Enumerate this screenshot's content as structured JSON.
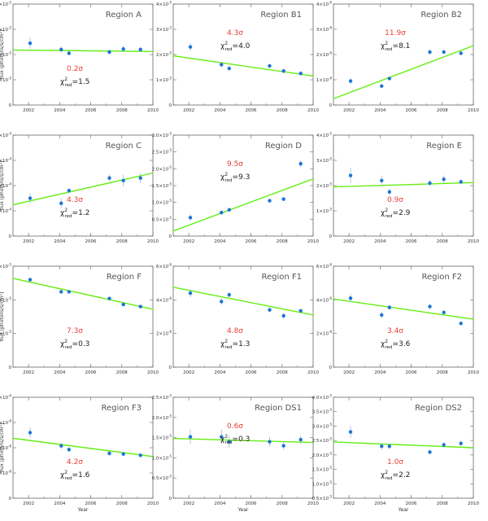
{
  "colors": {
    "fit_line": "#66ee11",
    "points": "#1d74d8",
    "sigma": "#e8403a",
    "axes": "#666666"
  },
  "axis_labels": {
    "x": "Year",
    "y": "flux [photons/s/cm²]"
  },
  "chart_data": [
    {
      "type": "scatter",
      "title": "Region A",
      "sigma": "0.2σ",
      "chi2_red": "1.5",
      "exp": -5,
      "ylim": [
        0,
        4
      ],
      "yticks": [
        0,
        1,
        2,
        3,
        4
      ],
      "yformat": "int",
      "xlim": [
        2001,
        2010
      ],
      "xticks": [
        2002,
        2004,
        2006,
        2008,
        2010
      ],
      "points": [
        [
          2002.1,
          2.45,
          0.22
        ],
        [
          2004.1,
          2.2,
          0.12
        ],
        [
          2004.6,
          2.05,
          0.08
        ],
        [
          2007.2,
          2.1,
          0.1
        ],
        [
          2008.1,
          2.22,
          0.12
        ],
        [
          2009.2,
          2.2,
          0.1
        ]
      ],
      "fit": [
        [
          2001,
          2.18
        ],
        [
          2010,
          2.12
        ]
      ],
      "label_pos": "lower"
    },
    {
      "type": "scatter",
      "title": "Region B1",
      "sigma": "4.3σ",
      "chi2_red": "4.0",
      "exp": -5,
      "ylim": [
        0,
        4
      ],
      "yticks": [
        0,
        1,
        2,
        3,
        4
      ],
      "yformat": "int",
      "xlim": [
        2001,
        2010
      ],
      "xticks": [
        2002,
        2004,
        2006,
        2008,
        2010
      ],
      "points": [
        [
          2002.1,
          2.3,
          0.15
        ],
        [
          2004.1,
          1.6,
          0.1
        ],
        [
          2004.6,
          1.45,
          0.08
        ],
        [
          2007.2,
          1.55,
          0.08
        ],
        [
          2008.1,
          1.35,
          0.1
        ],
        [
          2009.2,
          1.25,
          0.08
        ]
      ],
      "fit": [
        [
          2001,
          1.95
        ],
        [
          2010,
          1.15
        ]
      ],
      "label_pos": "upper"
    },
    {
      "type": "scatter",
      "title": "Region B2",
      "sigma": "11.9σ",
      "chi2_red": "8.1",
      "exp": -6,
      "ylim": [
        0,
        4
      ],
      "yticks": [
        0,
        1,
        2,
        3,
        4
      ],
      "yformat": "int",
      "xlim": [
        2001,
        2010
      ],
      "xticks": [
        2002,
        2004,
        2006,
        2008,
        2010
      ],
      "points": [
        [
          2002.1,
          0.95,
          0.12
        ],
        [
          2004.1,
          0.75,
          0.06
        ],
        [
          2004.6,
          1.05,
          0.06
        ],
        [
          2007.2,
          2.1,
          0.1
        ],
        [
          2008.1,
          2.1,
          0.08
        ],
        [
          2009.2,
          2.05,
          0.08
        ]
      ],
      "fit": [
        [
          2001,
          0.25
        ],
        [
          2010,
          2.35
        ]
      ],
      "label_pos": "upper"
    },
    {
      "type": "scatter",
      "title": "Region C",
      "sigma": "4.3σ",
      "chi2_red": "1.2",
      "exp": -4,
      "ylim": [
        0,
        2
      ],
      "yticks": [
        0,
        0.5,
        1,
        1.5,
        2
      ],
      "yformat": "1dec",
      "xlim": [
        2001,
        2010
      ],
      "xticks": [
        2002,
        2004,
        2006,
        2008,
        2010
      ],
      "points": [
        [
          2002.1,
          0.75,
          0.1
        ],
        [
          2004.1,
          0.65,
          0.1
        ],
        [
          2004.6,
          0.9,
          0.05
        ],
        [
          2007.2,
          1.15,
          0.07
        ],
        [
          2008.1,
          1.1,
          0.12
        ],
        [
          2009.2,
          1.15,
          0.1
        ]
      ],
      "fit": [
        [
          2001,
          0.62
        ],
        [
          2010,
          1.25
        ]
      ],
      "label_pos": "lower"
    },
    {
      "type": "scatter",
      "title": "Region D",
      "sigma": "9.5σ",
      "chi2_red": "9.3",
      "exp": -5,
      "ylim": [
        0,
        3
      ],
      "yticks": [
        0,
        0.5,
        1,
        1.5,
        2,
        2.5,
        3
      ],
      "yformat": "1dec",
      "xlim": [
        2001,
        2010
      ],
      "xticks": [
        2002,
        2004,
        2006,
        2008,
        2010
      ],
      "points": [
        [
          2002.1,
          0.55,
          0.1
        ],
        [
          2004.1,
          0.7,
          0.07
        ],
        [
          2004.6,
          0.78,
          0.05
        ],
        [
          2007.2,
          1.05,
          0.05
        ],
        [
          2008.1,
          1.1,
          0.06
        ],
        [
          2009.2,
          2.15,
          0.1
        ]
      ],
      "fit": [
        [
          2001,
          0.15
        ],
        [
          2010,
          1.7
        ]
      ],
      "label_pos": "upper"
    },
    {
      "type": "scatter",
      "title": "Region E",
      "sigma": "0.9σ",
      "chi2_red": "2.9",
      "exp": -5,
      "ylim": [
        0,
        4
      ],
      "yticks": [
        0,
        1,
        2,
        3,
        4
      ],
      "yformat": "int",
      "xlim": [
        2001,
        2010
      ],
      "xticks": [
        2002,
        2004,
        2006,
        2008,
        2010
      ],
      "points": [
        [
          2002.1,
          2.4,
          0.3
        ],
        [
          2004.1,
          2.2,
          0.2
        ],
        [
          2004.6,
          1.75,
          0.12
        ],
        [
          2007.2,
          2.1,
          0.12
        ],
        [
          2008.1,
          2.25,
          0.15
        ],
        [
          2009.2,
          2.15,
          0.1
        ]
      ],
      "fit": [
        [
          2001,
          1.95
        ],
        [
          2010,
          2.12
        ]
      ],
      "label_pos": "lower"
    },
    {
      "type": "scatter",
      "title": "Region F",
      "sigma": "7.3σ",
      "chi2_red": "0.3",
      "exp": -5,
      "ylim": [
        0,
        1.5
      ],
      "yticks": [
        0,
        0.5,
        1,
        1.5
      ],
      "yformat": "int",
      "xlim": [
        2001,
        2010
      ],
      "xticks": [
        2002,
        2004,
        2006,
        2008,
        2010
      ],
      "points": [
        [
          2002.1,
          1.3,
          0.03
        ],
        [
          2004.1,
          1.12,
          0.02
        ],
        [
          2004.6,
          1.12,
          0.02
        ],
        [
          2007.2,
          1.02,
          0.02
        ],
        [
          2008.1,
          0.93,
          0.02
        ],
        [
          2009.2,
          0.9,
          0.02
        ]
      ],
      "fit": [
        [
          2001,
          1.32
        ],
        [
          2010,
          0.86
        ]
      ],
      "label_pos": "lower"
    },
    {
      "type": "scatter",
      "title": "Region F1",
      "sigma": "4.8σ",
      "chi2_red": "1.3",
      "exp": -6,
      "ylim": [
        0,
        6
      ],
      "yticks": [
        0,
        2,
        4,
        6
      ],
      "yformat": "int",
      "xlim": [
        2001,
        2010
      ],
      "xticks": [
        2002,
        2004,
        2006,
        2008,
        2010
      ],
      "points": [
        [
          2002.1,
          4.4,
          0.25
        ],
        [
          2004.1,
          3.9,
          0.2
        ],
        [
          2004.6,
          4.3,
          0.15
        ],
        [
          2007.2,
          3.4,
          0.15
        ],
        [
          2008.1,
          3.05,
          0.15
        ],
        [
          2009.2,
          3.35,
          0.12
        ]
      ],
      "fit": [
        [
          2001,
          4.75
        ],
        [
          2010,
          3.1
        ]
      ],
      "label_pos": "lower"
    },
    {
      "type": "scatter",
      "title": "Region F2",
      "sigma": "3.4σ",
      "chi2_red": "3.6",
      "exp": -6,
      "ylim": [
        0,
        6
      ],
      "yticks": [
        0,
        2,
        4,
        6
      ],
      "yformat": "int",
      "xlim": [
        2001,
        2010
      ],
      "xticks": [
        2002,
        2004,
        2006,
        2008,
        2010
      ],
      "points": [
        [
          2002.1,
          4.1,
          0.25
        ],
        [
          2004.1,
          3.1,
          0.2
        ],
        [
          2004.6,
          3.55,
          0.15
        ],
        [
          2007.2,
          3.6,
          0.15
        ],
        [
          2008.1,
          3.25,
          0.15
        ],
        [
          2009.2,
          2.6,
          0.12
        ]
      ],
      "fit": [
        [
          2001,
          4.05
        ],
        [
          2010,
          2.85
        ]
      ],
      "label_pos": "lower"
    },
    {
      "type": "scatter",
      "title": "Region F3",
      "sigma": "4.2σ",
      "chi2_red": "1.6",
      "exp": -6,
      "ylim": [
        0,
        8
      ],
      "yticks": [
        0,
        2,
        4,
        6,
        8
      ],
      "yformat": "int",
      "xlim": [
        2001,
        2010
      ],
      "xticks": [
        2002,
        2004,
        2006,
        2008,
        2010
      ],
      "points": [
        [
          2002.1,
          5.2,
          0.4
        ],
        [
          2004.1,
          4.15,
          0.25
        ],
        [
          2004.6,
          3.85,
          0.2
        ],
        [
          2007.2,
          3.55,
          0.18
        ],
        [
          2008.1,
          3.5,
          0.15
        ],
        [
          2009.2,
          3.4,
          0.15
        ]
      ],
      "fit": [
        [
          2001,
          4.75
        ],
        [
          2010,
          3.3
        ]
      ],
      "label_pos": "lower"
    },
    {
      "type": "scatter",
      "title": "Region DS1",
      "sigma": "0.6σ",
      "chi2_red": "0.3",
      "exp": -5,
      "ylim": [
        0,
        2.5
      ],
      "yticks": [
        0,
        0.5,
        1,
        1.5,
        2,
        2.5
      ],
      "yformat": "1dec",
      "xlim": [
        2001,
        2010
      ],
      "xticks": [
        2002,
        2004,
        2006,
        2008,
        2010
      ],
      "points": [
        [
          2002.1,
          1.52,
          0.18
        ],
        [
          2004.1,
          1.52,
          0.18
        ],
        [
          2004.6,
          1.4,
          0.15
        ],
        [
          2007.2,
          1.4,
          0.12
        ],
        [
          2008.1,
          1.3,
          0.1
        ],
        [
          2009.2,
          1.45,
          0.1
        ]
      ],
      "fit": [
        [
          2001,
          1.48
        ],
        [
          2010,
          1.38
        ]
      ],
      "label_pos": "upper"
    },
    {
      "type": "scatter",
      "title": "Region DS2",
      "sigma": "1.0σ",
      "chi2_red": "2.2",
      "exp": -5,
      "ylim": [
        0.5,
        4
      ],
      "yticks": [
        0.5,
        1,
        1.5,
        2,
        2.5,
        3,
        3.5,
        4
      ],
      "yformat": "1dec",
      "xlim": [
        2001,
        2010
      ],
      "xticks": [
        2002,
        2004,
        2006,
        2008,
        2010
      ],
      "points": [
        [
          2002.1,
          2.8,
          0.2
        ],
        [
          2004.1,
          2.3,
          0.12
        ],
        [
          2004.6,
          2.3,
          0.1
        ],
        [
          2007.2,
          2.1,
          0.08
        ],
        [
          2008.1,
          2.35,
          0.1
        ],
        [
          2009.2,
          2.4,
          0.1
        ]
      ],
      "fit": [
        [
          2001,
          2.45
        ],
        [
          2010,
          2.25
        ]
      ],
      "label_pos": "lower"
    }
  ]
}
